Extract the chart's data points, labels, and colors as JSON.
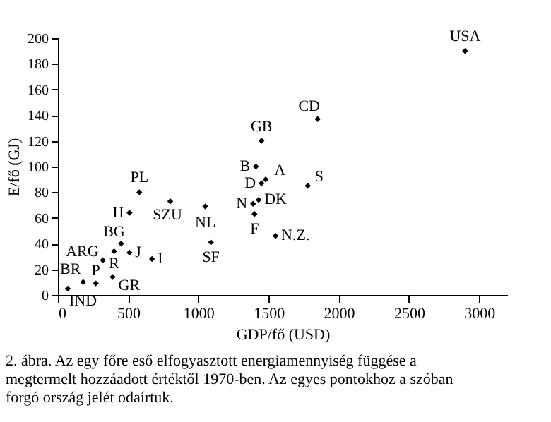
{
  "chart_data": {
    "type": "scatter",
    "xlabel": "GDP/fő (USD)",
    "ylabel": "E/fő (GJ)",
    "x": [
      70,
      180,
      270,
      390,
      320,
      400,
      450,
      510,
      670,
      510,
      580,
      800,
      1050,
      1090,
      2900,
      1850,
      1450,
      1410,
      1480,
      1450,
      1780,
      1390,
      1430,
      1400,
      1550
    ],
    "series": [
      {
        "color": "#000000",
        "values": [
          5,
          10,
          9,
          14,
          27,
          34,
          40,
          33,
          28,
          64,
          80,
          73,
          69,
          41,
          190,
          137,
          120,
          100,
          90,
          87,
          85,
          71,
          74,
          63,
          46
        ]
      }
    ],
    "marker": "diamond",
    "grid": false,
    "xlim": [
      0,
      3200
    ],
    "ylim": [
      0,
      200
    ],
    "xticks": [
      0,
      500,
      1000,
      1500,
      2000,
      2500,
      3000
    ],
    "yticks": [
      0,
      20,
      40,
      60,
      80,
      100,
      120,
      140,
      160,
      180,
      200
    ],
    "annotations": [
      {
        "text": "IND",
        "x": 70,
        "y": 5
      },
      {
        "text": "BR",
        "x": 180,
        "y": 10
      },
      {
        "text": "P",
        "x": 270,
        "y": 9
      },
      {
        "text": "GR",
        "x": 390,
        "y": 14
      },
      {
        "text": "ARG",
        "x": 320,
        "y": 27
      },
      {
        "text": "R",
        "x": 400,
        "y": 34
      },
      {
        "text": "BG",
        "x": 450,
        "y": 40
      },
      {
        "text": "J",
        "x": 510,
        "y": 33
      },
      {
        "text": "I",
        "x": 670,
        "y": 28
      },
      {
        "text": "H",
        "x": 510,
        "y": 64
      },
      {
        "text": "PL",
        "x": 580,
        "y": 80
      },
      {
        "text": "SZU",
        "x": 800,
        "y": 73
      },
      {
        "text": "NL",
        "x": 1050,
        "y": 69
      },
      {
        "text": "SF",
        "x": 1090,
        "y": 41
      },
      {
        "text": "USA",
        "x": 2900,
        "y": 190
      },
      {
        "text": "CD",
        "x": 1850,
        "y": 137
      },
      {
        "text": "GB",
        "x": 1450,
        "y": 120
      },
      {
        "text": "B",
        "x": 1410,
        "y": 100
      },
      {
        "text": "A",
        "x": 1480,
        "y": 90
      },
      {
        "text": "D",
        "x": 1450,
        "y": 87
      },
      {
        "text": "S",
        "x": 1780,
        "y": 85
      },
      {
        "text": "N",
        "x": 1390,
        "y": 71
      },
      {
        "text": "DK",
        "x": 1430,
        "y": 74
      },
      {
        "text": "F",
        "x": 1400,
        "y": 63
      },
      {
        "text": "N.Z.",
        "x": 1550,
        "y": 46
      },
      "2. ábra. Az egy főre eső elfogyasztott energiamennyiség függése a megtermelt hozzáadott értéktől 1970-ben. Az egyes pontokhoz a szóban forgó ország jelét odaírtuk."
    ]
  }
}
